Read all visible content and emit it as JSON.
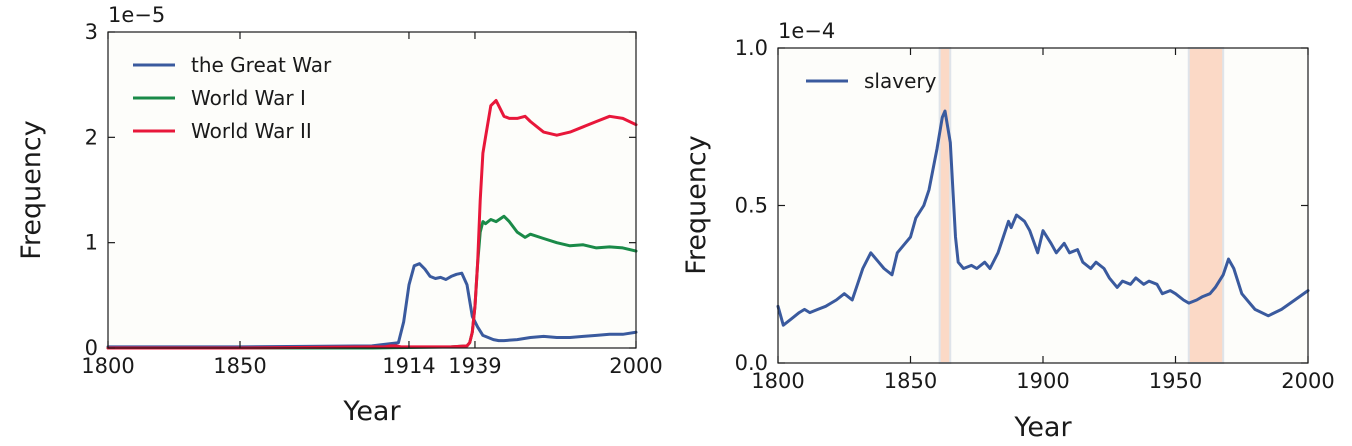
{
  "chart_data": [
    {
      "type": "line",
      "xlabel": "Year",
      "ylabel": "Frequency",
      "y_offset_label": "1e−5",
      "xlim": [
        1800,
        2000
      ],
      "ylim": [
        0,
        3
      ],
      "xticks": [
        1800,
        1850,
        1914,
        1939,
        2000
      ],
      "xtick_labels": [
        "1800",
        "1850",
        "1914",
        "1939",
        "2000"
      ],
      "yticks": [
        0,
        1,
        2,
        3
      ],
      "ytick_labels": [
        "0",
        "1",
        "2",
        "3"
      ],
      "legend_position": "top-left",
      "series": [
        {
          "name": "the Great War",
          "color": "#3a5a9e",
          "x": [
            1800,
            1850,
            1900,
            1910,
            1912,
            1914,
            1916,
            1918,
            1920,
            1922,
            1924,
            1926,
            1928,
            1930,
            1932,
            1934,
            1936,
            1938,
            1940,
            1942,
            1944,
            1946,
            1948,
            1950,
            1955,
            1960,
            1965,
            1970,
            1975,
            1980,
            1985,
            1990,
            1995,
            2000
          ],
          "values": [
            0.01,
            0.01,
            0.02,
            0.05,
            0.25,
            0.6,
            0.78,
            0.8,
            0.75,
            0.68,
            0.66,
            0.67,
            0.65,
            0.68,
            0.7,
            0.71,
            0.6,
            0.3,
            0.2,
            0.12,
            0.1,
            0.08,
            0.07,
            0.07,
            0.08,
            0.1,
            0.11,
            0.1,
            0.1,
            0.11,
            0.12,
            0.13,
            0.13,
            0.15
          ]
        },
        {
          "name": "World War I",
          "color": "#1a8a48",
          "x": [
            1800,
            1850,
            1900,
            1930,
            1936,
            1937,
            1938,
            1939,
            1940,
            1941,
            1942,
            1943,
            1945,
            1947,
            1950,
            1952,
            1955,
            1958,
            1960,
            1965,
            1970,
            1975,
            1980,
            1985,
            1990,
            1995,
            2000
          ],
          "values": [
            0.0,
            0.0,
            0.0,
            0.01,
            0.02,
            0.05,
            0.15,
            0.4,
            0.8,
            1.1,
            1.2,
            1.18,
            1.22,
            1.2,
            1.25,
            1.2,
            1.1,
            1.05,
            1.08,
            1.04,
            1.0,
            0.97,
            0.98,
            0.95,
            0.96,
            0.95,
            0.92
          ]
        },
        {
          "name": "World War II",
          "color": "#e8173a",
          "x": [
            1800,
            1850,
            1900,
            1905,
            1907,
            1909,
            1911,
            1930,
            1936,
            1937,
            1938,
            1939,
            1940,
            1941,
            1942,
            1943,
            1945,
            1947,
            1948,
            1950,
            1952,
            1955,
            1958,
            1960,
            1965,
            1970,
            1975,
            1980,
            1985,
            1990,
            1995,
            2000
          ],
          "values": [
            0.0,
            0.0,
            0.01,
            0.01,
            0.02,
            0.02,
            0.01,
            0.01,
            0.02,
            0.05,
            0.15,
            0.4,
            0.8,
            1.4,
            1.85,
            2.0,
            2.3,
            2.35,
            2.3,
            2.2,
            2.18,
            2.18,
            2.2,
            2.15,
            2.05,
            2.02,
            2.05,
            2.1,
            2.15,
            2.2,
            2.18,
            2.12
          ]
        }
      ]
    },
    {
      "type": "line",
      "xlabel": "Year",
      "ylabel": "Frequency",
      "y_offset_label": "1e−4",
      "xlim": [
        1800,
        2000
      ],
      "ylim": [
        0,
        1
      ],
      "xticks": [
        1800,
        1850,
        1900,
        1950,
        2000
      ],
      "xtick_labels": [
        "1800",
        "1850",
        "1900",
        "1950",
        "2000"
      ],
      "yticks": [
        0,
        0.5,
        1
      ],
      "ytick_labels": [
        "0.0",
        "0.5",
        "1.0"
      ],
      "legend_position": "top-left",
      "shaded_spans": [
        {
          "x0": 1861,
          "x1": 1865,
          "color": "#fbd9c6"
        },
        {
          "x0": 1955,
          "x1": 1968,
          "color": "#fbd9c6"
        }
      ],
      "series": [
        {
          "name": "slavery",
          "color": "#3a5a9e",
          "x": [
            1800,
            1802,
            1805,
            1808,
            1810,
            1812,
            1815,
            1818,
            1820,
            1822,
            1825,
            1828,
            1830,
            1832,
            1835,
            1838,
            1840,
            1843,
            1845,
            1848,
            1850,
            1852,
            1855,
            1857,
            1860,
            1862,
            1863,
            1865,
            1866,
            1867,
            1868,
            1870,
            1873,
            1875,
            1878,
            1880,
            1883,
            1885,
            1887,
            1888,
            1890,
            1893,
            1895,
            1898,
            1900,
            1903,
            1905,
            1908,
            1910,
            1913,
            1915,
            1918,
            1920,
            1923,
            1925,
            1928,
            1930,
            1933,
            1935,
            1938,
            1940,
            1943,
            1945,
            1948,
            1950,
            1953,
            1955,
            1958,
            1960,
            1963,
            1965,
            1968,
            1970,
            1972,
            1975,
            1978,
            1980,
            1985,
            1990,
            1995,
            2000
          ],
          "values": [
            0.18,
            0.12,
            0.14,
            0.16,
            0.17,
            0.16,
            0.17,
            0.18,
            0.19,
            0.2,
            0.22,
            0.2,
            0.25,
            0.3,
            0.35,
            0.32,
            0.3,
            0.28,
            0.35,
            0.38,
            0.4,
            0.46,
            0.5,
            0.55,
            0.68,
            0.78,
            0.8,
            0.7,
            0.55,
            0.4,
            0.32,
            0.3,
            0.31,
            0.3,
            0.32,
            0.3,
            0.35,
            0.4,
            0.45,
            0.43,
            0.47,
            0.45,
            0.42,
            0.35,
            0.42,
            0.38,
            0.35,
            0.38,
            0.35,
            0.36,
            0.32,
            0.3,
            0.32,
            0.3,
            0.27,
            0.24,
            0.26,
            0.25,
            0.27,
            0.25,
            0.26,
            0.25,
            0.22,
            0.23,
            0.22,
            0.2,
            0.19,
            0.2,
            0.21,
            0.22,
            0.24,
            0.28,
            0.33,
            0.3,
            0.22,
            0.19,
            0.17,
            0.15,
            0.17,
            0.2,
            0.23
          ]
        }
      ]
    }
  ]
}
